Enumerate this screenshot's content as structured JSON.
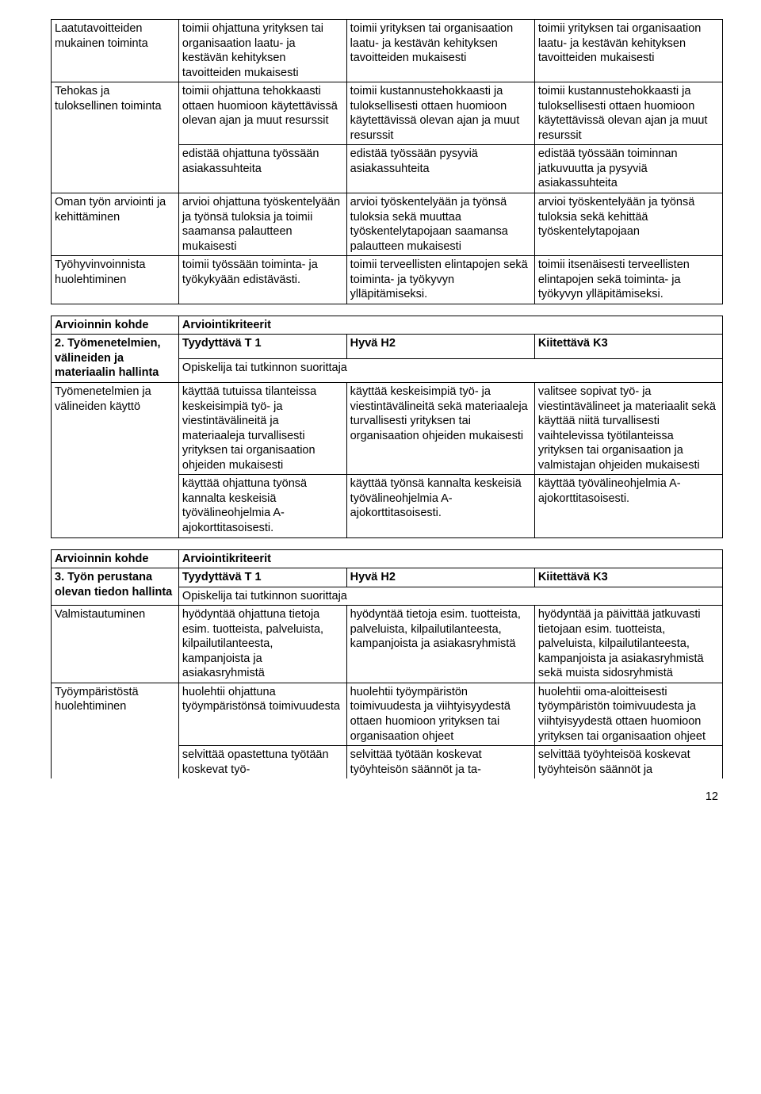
{
  "table1": {
    "rows": [
      {
        "c0": "Laatutavoitteiden mukainen toiminta",
        "c1": "toimii ohjattuna yrityksen tai organisaation laatu- ja kestävän kehityksen tavoitteiden mukaisesti",
        "c2": "toimii yrityksen tai organisaation laatu- ja kestävän kehityksen tavoitteiden mukaisesti",
        "c3": "toimii yrityksen tai organisaation laatu- ja kestävän kehityksen tavoitteiden mukaisesti"
      },
      {
        "c0": "Tehokas ja tuloksellinen toiminta",
        "c1": "toimii ohjattuna tehokkaasti ottaen huomioon käytettävissä olevan ajan ja muut resurssit",
        "c2": "toimii kustannustehokkaasti ja tuloksellisesti ottaen huomioon käytettävissä olevan ajan ja muut resurssit",
        "c3": "toimii kustannustehokkaasti ja tuloksellisesti ottaen huomioon käytettävissä olevan ajan ja muut resurssit"
      },
      {
        "c0": "",
        "c1": "edistää ohjattuna työssään asiakassuhteita",
        "c2": "edistää työssään pysyviä asiakassuhteita",
        "c3": "edistää työssään toiminnan jatkuvuutta ja pysyviä asiakassuhteita"
      },
      {
        "c0": "Oman työn arviointi ja kehittäminen",
        "c1": "arvioi ohjattuna työskentelyään ja työnsä tuloksia ja toimii saamansa palautteen mukaisesti",
        "c2": "arvioi työskentelyään ja työnsä tuloksia sekä muuttaa työskentelytapojaan saamansa palautteen mukaisesti",
        "c3": "arvioi työskentelyään ja työnsä tuloksia sekä kehittää työskentelytapojaan"
      },
      {
        "c0": "Työhyvinvoinnista huolehtiminen",
        "c1": "toimii työssään toiminta- ja työkykyään edistävästi.",
        "c2": "toimii terveellisten elintapojen sekä toiminta- ja työkyvyn ylläpitämiseksi.",
        "c3": "toimii itsenäisesti terveellisten elintapojen sekä toiminta- ja työkyvyn ylläpitämiseksi."
      }
    ]
  },
  "table2": {
    "headerLeft": "Arvioinnin kohde",
    "headerRight": "Arviointikriteerit",
    "sectionLabel": "2. Työmenetelmien, välineiden ja materiaalin hallinta",
    "t1": "Tyydyttävä T 1",
    "h2": "Hyvä H2",
    "k3": "Kiitettävä K3",
    "subheader": "Opiskelija tai tutkinnon suorittaja",
    "rows": [
      {
        "c0": "Työmenetelmien ja välineiden käyttö",
        "c1": "käyttää tutuissa tilanteissa keskeisimpiä työ- ja viestintävälineitä ja materiaaleja turvallisesti yrityksen tai organisaation ohjeiden mukaisesti",
        "c2": "käyttää keskeisimpiä työ- ja viestintävälineitä sekä materiaaleja turvallisesti yrityksen tai organisaation ohjeiden mukaisesti",
        "c3": "valitsee sopivat työ- ja viestintävälineet ja materiaalit sekä käyttää niitä turvallisesti vaihtelevissa työtilanteissa yrityksen tai organisaation ja valmistajan ohjeiden mukaisesti"
      },
      {
        "c0": "",
        "c1": "käyttää ohjattuna työnsä kannalta keskeisiä työvälineohjelmia A-ajokorttitasoisesti.",
        "c2": "käyttää työnsä kannalta keskeisiä työvälineohjelmia A-ajokorttitasoisesti.",
        "c3": "käyttää työvälineohjelmia A-ajokorttitasoisesti."
      }
    ]
  },
  "table3": {
    "headerLeft": "Arvioinnin kohde",
    "headerRight": "Arviointikriteerit",
    "sectionLabel": "3. Työn perustana olevan tiedon hallinta",
    "t1": "Tyydyttävä T 1",
    "h2": "Hyvä H2",
    "k3": "Kiitettävä K3",
    "subheader": "Opiskelija tai tutkinnon suorittaja",
    "rows": [
      {
        "c0": "Valmistautuminen",
        "c1": "hyödyntää ohjattuna tietoja esim. tuotteista, palveluista, kilpailutilanteesta, kampanjoista ja asiakasryhmistä",
        "c2": "hyödyntää tietoja esim. tuotteista, palveluista, kilpailutilanteesta, kampanjoista ja asiakasryhmistä",
        "c3": "hyödyntää ja päivittää jatkuvasti tietojaan esim. tuotteista, palveluista, kilpailutilanteesta, kampanjoista ja asiakasryhmistä sekä muista sidosryhmistä"
      },
      {
        "c0": "Työympäristöstä huolehtiminen",
        "c1": "huolehtii ohjattuna työympäristönsä toimivuudesta",
        "c2": "huolehtii työympäristön toimivuudesta ja viihtyisyydestä ottaen huomioon yrityksen tai organisaation ohjeet",
        "c3": "huolehtii oma-aloitteisesti työympäristön toimivuudesta ja viihtyisyydestä ottaen huomioon yrityksen tai organisaation ohjeet"
      },
      {
        "c0": "",
        "c1": "selvittää opastettuna työtään koskevat työ-",
        "c2": "selvittää työtään koskevat työyhteisön säännöt ja ta-",
        "c3": "selvittää työyhteisöä koskevat työyhteisön säännöt ja"
      }
    ]
  },
  "pageNumber": "12"
}
